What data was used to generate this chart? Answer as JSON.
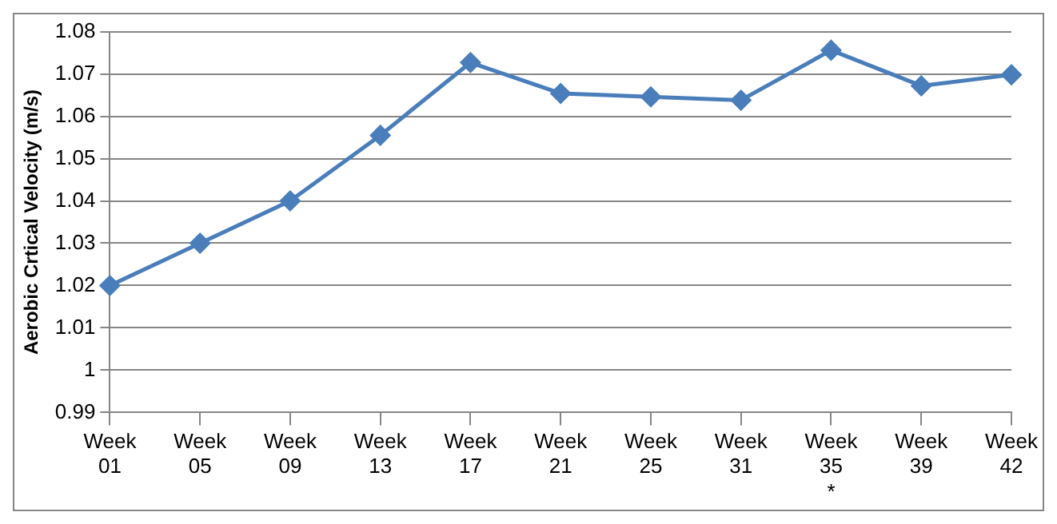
{
  "chart_data": {
    "type": "line",
    "ylabel": "Aerobic Crtical Velocity (m/s)",
    "categories": [
      "Week 01",
      "Week 05",
      "Week 09",
      "Week 13",
      "Week 17",
      "Week 21",
      "Week 25",
      "Week 31",
      "Week 35 *",
      "Week 39",
      "Week 42"
    ],
    "series": [
      {
        "color": "#4a7ebb",
        "values": [
          1.02,
          1.03,
          1.04,
          1.0555,
          1.0727,
          1.0654,
          1.0646,
          1.0638,
          1.0756,
          1.0672,
          1.0698
        ]
      }
    ],
    "ylim": [
      0.99,
      1.08
    ],
    "yticks": [
      0.99,
      1,
      1.01,
      1.02,
      1.03,
      1.04,
      1.05,
      1.06,
      1.07,
      1.08
    ],
    "grid": "y",
    "legend": false,
    "marker": "diamond",
    "line_style": "solid"
  }
}
